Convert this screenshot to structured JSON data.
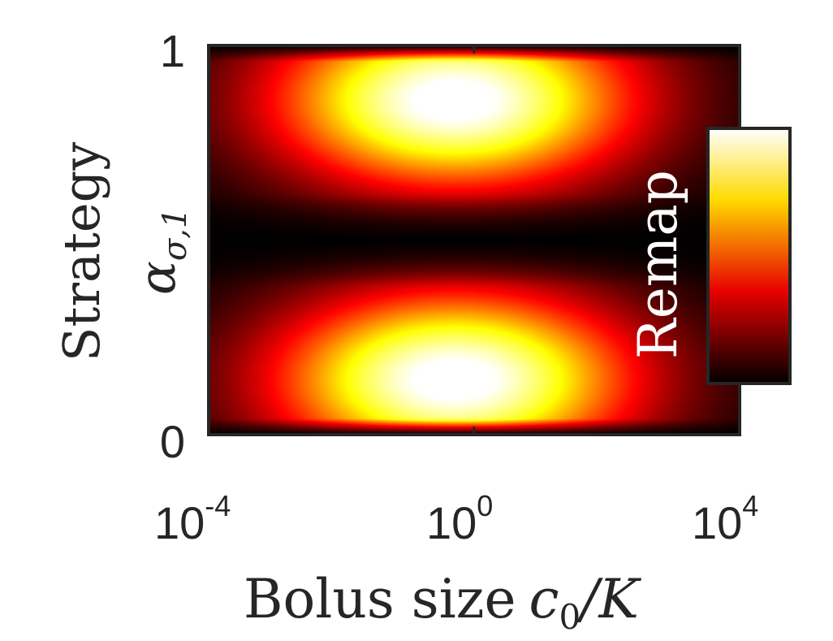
{
  "chart_data": {
    "type": "heatmap",
    "title": "",
    "xlabel": {
      "text": "Bolus size",
      "math": "c",
      "math_sub": "0",
      "math_tail": "/K"
    },
    "ylabel": {
      "text": "Strategy",
      "math": "α",
      "math_sub": "σ,1"
    },
    "x_scale": "log10",
    "xlim": [
      0.0001,
      10000
    ],
    "ylim": [
      0,
      1
    ],
    "x_ticks": [
      {
        "base": "10",
        "exp": "-4"
      },
      {
        "base": "10",
        "exp": "0"
      },
      {
        "base": "10",
        "exp": "4"
      }
    ],
    "y_ticks": [
      "0",
      "1"
    ],
    "colorbar": {
      "label": "Remap",
      "colormap": "hot",
      "ticks_shown": false
    },
    "peaks": [
      {
        "x": 0.5,
        "y": 0.86,
        "relative_value": 1.0
      },
      {
        "x": 0.5,
        "y": 0.14,
        "relative_value": 1.0
      }
    ],
    "minimum_band_y": 0.5,
    "grid": false,
    "colors": {
      "axis": "#262626",
      "background": "#ffffff"
    }
  }
}
